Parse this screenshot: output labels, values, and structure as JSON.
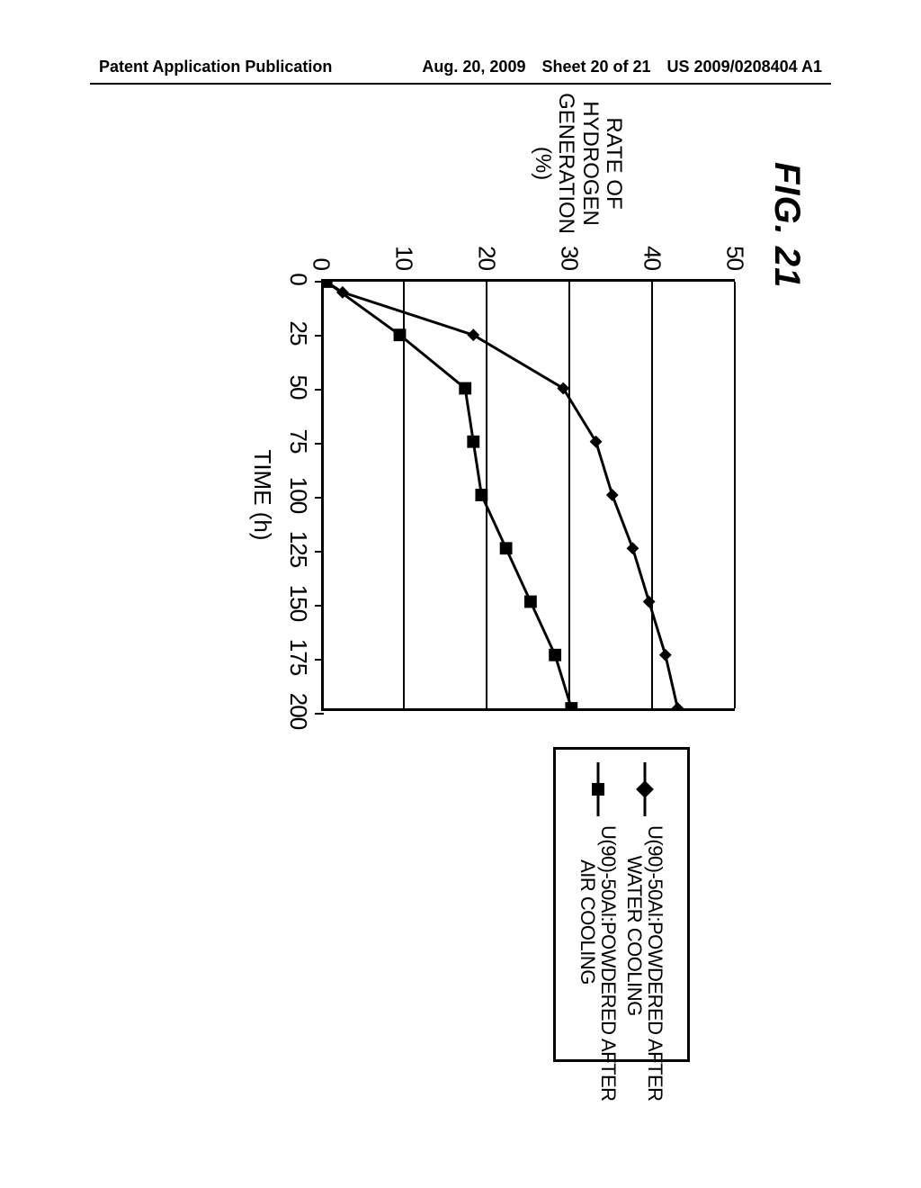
{
  "header": {
    "left": "Patent Application Publication",
    "date": "Aug. 20, 2009",
    "sheet": "Sheet 20 of 21",
    "pubno": "US 2009/0208404 A1"
  },
  "figure": {
    "title": "FIG. 21",
    "chart": {
      "type": "line",
      "background_color": "#ffffff",
      "grid_color": "#000000",
      "line_color": "#000000",
      "line_width": 3,
      "marker_size": 14,
      "xlabel": "TIME (h)",
      "ylabel": "RATE OF\nHYDROGEN\nGENERATION\n(%)",
      "label_fontsize": 26,
      "tick_fontsize": 26,
      "xlim": [
        0,
        200
      ],
      "ylim": [
        0,
        50
      ],
      "xticks": [
        0,
        25,
        50,
        75,
        100,
        125,
        150,
        175,
        200
      ],
      "yticks": [
        0,
        10,
        20,
        30,
        40,
        50
      ],
      "series": [
        {
          "name": "U(90)-50Al:POWDERED AFTER\n      WATER COOLING",
          "marker": "diamond",
          "x": [
            0,
            5,
            25,
            50,
            75,
            100,
            125,
            150,
            175,
            200
          ],
          "y": [
            0,
            2,
            18,
            29,
            33,
            35,
            37.5,
            39.5,
            41.5,
            43
          ]
        },
        {
          "name": "U(90)-50Al:POWDERED AFTER\n       AIR COOLING",
          "marker": "square",
          "x": [
            0,
            25,
            50,
            75,
            100,
            125,
            150,
            175,
            200
          ],
          "y": [
            0,
            9,
            17,
            18,
            19,
            22,
            25,
            28,
            30
          ]
        }
      ]
    }
  }
}
